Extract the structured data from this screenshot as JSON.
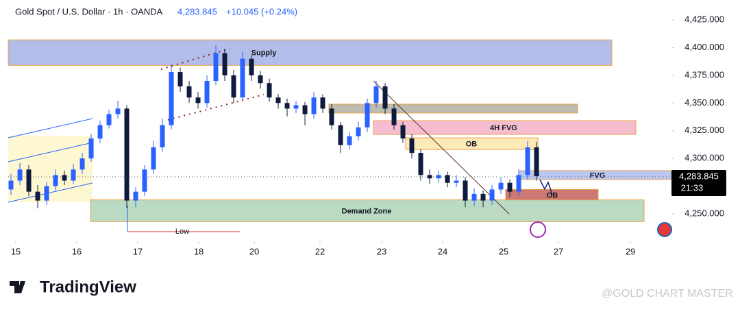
{
  "header": {
    "symbol": "Gold Spot / U.S. Dollar · 1h · OANDA",
    "price": "4,283.845",
    "change": "+10.045 (+0.24%)"
  },
  "chart_data": {
    "type": "candlestick",
    "up_color": "#2962ff",
    "down_color": "#0e1b3d",
    "xlim": [
      -0.31,
      74.15
    ],
    "xticks": [
      {
        "value": 0.54,
        "label": "15"
      },
      {
        "value": 7.38,
        "label": "16"
      },
      {
        "value": 14.23,
        "label": "17"
      },
      {
        "value": 21.08,
        "label": "18"
      },
      {
        "value": 27.31,
        "label": "20"
      },
      {
        "value": 34.69,
        "label": "22"
      },
      {
        "value": 41.62,
        "label": "23"
      },
      {
        "value": 48.46,
        "label": "24"
      },
      {
        "value": 55.31,
        "label": "25"
      },
      {
        "value": 61.46,
        "label": "27"
      },
      {
        "value": 69.54,
        "label": "29"
      }
    ],
    "ylim": [
      4226.5,
      4443
    ],
    "yticks": [
      {
        "value": 4425,
        "label": "4,425.000"
      },
      {
        "value": 4400,
        "label": "4,400.000"
      },
      {
        "value": 4375,
        "label": "4,375.000"
      },
      {
        "value": 4350,
        "label": "4,350.000"
      },
      {
        "value": 4325,
        "label": "4,325.000"
      },
      {
        "value": 4300,
        "label": "4,300.000"
      },
      {
        "value": 4250,
        "label": "4,250.000"
      }
    ],
    "open": [
      4272,
      4280,
      4290,
      4270,
      4262,
      4275,
      4285,
      4280,
      4290,
      4300,
      4318,
      4330,
      4340,
      4345,
      4262,
      4270,
      4290,
      4310,
      4330,
      4378,
      4365,
      4355,
      4350,
      4370,
      4395,
      4375,
      4355,
      4390,
      4375,
      4368,
      4355,
      4350,
      4345,
      4348,
      4340,
      4355,
      4345,
      4330,
      4312,
      4320,
      4328,
      4350,
      4365,
      4345,
      4330,
      4318,
      4305,
      4285,
      4282,
      4285,
      4278,
      4280,
      4262,
      4268,
      4262,
      4272,
      4278,
      4270,
      4285,
      4310
    ],
    "high": [
      4286,
      4296,
      4294,
      4276,
      4279,
      4290,
      4289,
      4295,
      4305,
      4322,
      4334,
      4344,
      4352,
      4348,
      4274,
      4294,
      4316,
      4336,
      4385,
      4382,
      4370,
      4360,
      4375,
      4402,
      4399,
      4380,
      4396,
      4393,
      4379,
      4372,
      4358,
      4354,
      4352,
      4351,
      4360,
      4358,
      4349,
      4333,
      4324,
      4333,
      4354,
      4370,
      4368,
      4349,
      4333,
      4322,
      4308,
      4290,
      4289,
      4288,
      4285,
      4283,
      4273,
      4271,
      4276,
      4283,
      4281,
      4290,
      4316,
      4315
    ],
    "low": [
      4267,
      4276,
      4266,
      4255,
      4258,
      4271,
      4276,
      4277,
      4286,
      4297,
      4314,
      4327,
      4336,
      4255,
      4256,
      4266,
      4286,
      4306,
      4326,
      4360,
      4350,
      4345,
      4346,
      4366,
      4370,
      4350,
      4352,
      4370,
      4363,
      4351,
      4345,
      4338,
      4341,
      4330,
      4336,
      4341,
      4326,
      4305,
      4308,
      4316,
      4324,
      4346,
      4340,
      4326,
      4314,
      4300,
      4280,
      4277,
      4278,
      4274,
      4274,
      4256,
      4257,
      4256,
      4258,
      4268,
      4265,
      4266,
      4281,
      4280
    ],
    "close": [
      4280,
      4290,
      4270,
      4262,
      4275,
      4285,
      4280,
      4290,
      4300,
      4318,
      4330,
      4340,
      4345,
      4262,
      4270,
      4290,
      4310,
      4330,
      4378,
      4365,
      4355,
      4350,
      4370,
      4395,
      4375,
      4355,
      4390,
      4375,
      4368,
      4355,
      4350,
      4345,
      4348,
      4340,
      4355,
      4345,
      4330,
      4312,
      4320,
      4328,
      4350,
      4365,
      4345,
      4330,
      4318,
      4305,
      4285,
      4282,
      4285,
      4278,
      4280,
      4262,
      4268,
      4262,
      4272,
      4278,
      4270,
      4285,
      4310,
      4284
    ],
    "zones": [
      {
        "label": "Supply",
        "range": [
          4384,
          4407
        ],
        "color": "#aebbe8"
      },
      {
        "range": [
          4341,
          4349
        ],
        "color": "#b8b8ac"
      },
      {
        "label": "4H FVG",
        "range": [
          4321.7,
          4334.1
        ],
        "color": "#f5b9cd"
      },
      {
        "label": "OB",
        "range": [
          4308.1,
          4318.6
        ],
        "color": "#fde9b2"
      },
      {
        "label": "FVG",
        "range": [
          4281,
          4289
        ],
        "color": "#b6c5f0"
      },
      {
        "label": "OB",
        "range": [
          4262,
          4272
        ],
        "color": "#c9716d"
      },
      {
        "label": "Demand Zone",
        "range": [
          4243,
          4262.6
        ],
        "color": "#b6d8c0"
      }
    ],
    "last_price": {
      "value": 4283.845,
      "label": "4,283.845"
    },
    "countdown": "21:33",
    "annotation": "Low"
  },
  "footer": {
    "brand": "TradingView",
    "watermark": "@GOLD CHART MASTER"
  }
}
